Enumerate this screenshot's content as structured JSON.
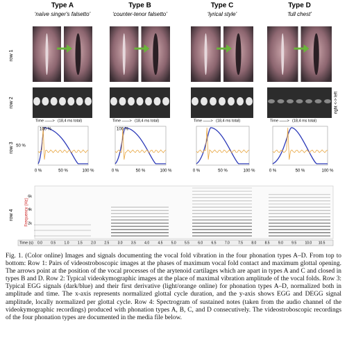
{
  "columns": [
    {
      "title": "Type A",
      "subtitle": "‘naïve singer's falsetto’"
    },
    {
      "title": "Type B",
      "subtitle": "‘counter-tenor falsetto’"
    },
    {
      "title": "Type C",
      "subtitle": "‘lyrical style’"
    },
    {
      "title": "Type D",
      "subtitle": "‘full chest’"
    }
  ],
  "row_labels": [
    "row 1",
    "row 2",
    "row 3",
    "row 4"
  ],
  "row2": {
    "time_label": "Time ——>",
    "total_label": "(18,4 ms total)",
    "side_label": "right <-> left"
  },
  "row3": {
    "y_labels": [
      "100 %",
      "50 %"
    ],
    "x_labels": [
      "0 %",
      "50 %",
      "100 %"
    ]
  },
  "row4": {
    "axis_label": "Frequency (Hz)",
    "freq_labels": [
      "6k",
      "4k",
      "2k"
    ],
    "time_title": "Time (s)",
    "time_labels": [
      "0.0",
      "0.5",
      "1.0",
      "1.5",
      "2.0",
      "2.5",
      "3.0",
      "3.5",
      "4.0",
      "4.5",
      "5.0",
      "5.5",
      "6.0",
      "6.5",
      "7.0",
      "7.5",
      "8.0",
      "8.5",
      "9.0",
      "9.5",
      "10.0",
      "10.5"
    ]
  },
  "caption": "Fig. 1. (Color online) Images and signals documenting the vocal fold vibration in the four phonation types A–D. From top to bottom: Row 1: Pairs of videostroboscopic images at the phases of maximum vocal fold contact and maximum glottal opening. The arrows point at the position of the vocal processes of the arytenoid cartilages which are apart in types A and C and closed in types B and D. Row 2: Typical videokymographic images at the place of maximal vibration amplitude of the vocal folds. Row 3: Typical EGG signals (dark/blue) and their first derivative (light/orange online) for phonation types A–D, normalized both in amplitude and time. The x-axis represents normalized glottal cycle duration, and the y-axis shows EGG and DEGG signal amplitude, locally normalized per glottal cycle. Row 4: Spectrogram of sustained notes (taken from the audio channel of the videokymographic recordings) produced with phonation types A, B, C, and D consecutively. The videostroboscopic recordings of the four phonation types are documented in the media file below."
}
